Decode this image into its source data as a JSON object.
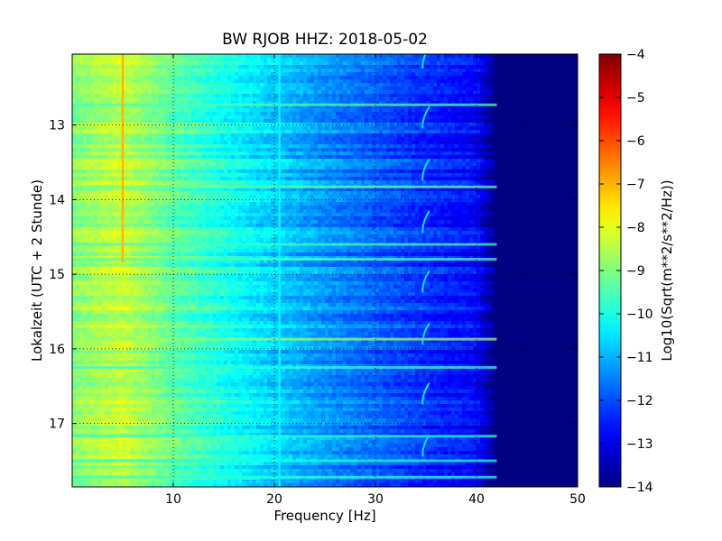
{
  "chart_data": {
    "type": "heatmap",
    "title": "BW RJOB HHZ: 2018-05-02",
    "xlabel": "Frequency [Hz]",
    "ylabel": "Lokalzeit (UTC + 2 Stunde)",
    "colorbar_label": "Log10(Sqrt(m**2/s**2/Hz))",
    "xlim": [
      0,
      50
    ],
    "ylim": [
      12.05,
      17.85
    ],
    "y_inverted": true,
    "x_ticks": [
      10,
      20,
      30,
      40,
      50
    ],
    "y_ticks": [
      13,
      14,
      15,
      16,
      17
    ],
    "clim": [
      -14,
      -4
    ],
    "colorbar_ticks": [
      -4,
      -5,
      -6,
      -7,
      -8,
      -9,
      -10,
      -11,
      -12,
      -13,
      -14
    ],
    "colormap": "jet",
    "grid": true,
    "frequency_profile": [
      {
        "freq": 0,
        "value": -8.9
      },
      {
        "freq": 5,
        "value": -8.3
      },
      {
        "freq": 10,
        "value": -9.3
      },
      {
        "freq": 15,
        "value": -10.0
      },
      {
        "freq": 20,
        "value": -10.7
      },
      {
        "freq": 25,
        "value": -11.3
      },
      {
        "freq": 30,
        "value": -11.8
      },
      {
        "freq": 35,
        "value": -12.3
      },
      {
        "freq": 40,
        "value": -12.7
      },
      {
        "freq": 42,
        "value": -14.0
      },
      {
        "freq": 50,
        "value": -14.0
      }
    ],
    "features": [
      {
        "label": "line at 5 Hz",
        "freq": 5.0,
        "t_start": 12.05,
        "t_end": 14.85,
        "value": -7.0
      },
      {
        "label": "line at 20.5 Hz",
        "freq": 20.5,
        "t_start": 12.05,
        "t_end": 17.85,
        "value": -10.3
      },
      {
        "label": "hourly tone near 35 Hz",
        "freq": 34.8,
        "times": [
          12.1,
          12.9,
          13.6,
          14.3,
          15.1,
          15.8,
          16.6,
          17.3
        ],
        "value": -10.5
      }
    ],
    "bright_rows": [
      {
        "time": 12.73,
        "value": -9.5
      },
      {
        "time": 13.83,
        "value": -9.3
      },
      {
        "time": 14.6,
        "value": -9.6
      },
      {
        "time": 14.8,
        "value": -9.5
      },
      {
        "time": 15.87,
        "value": -8.8
      },
      {
        "time": 16.25,
        "value": -9.8
      },
      {
        "time": 17.17,
        "value": -9.8
      },
      {
        "time": 17.5,
        "value": -10.0
      },
      {
        "time": 17.72,
        "value": -9.8
      }
    ]
  }
}
